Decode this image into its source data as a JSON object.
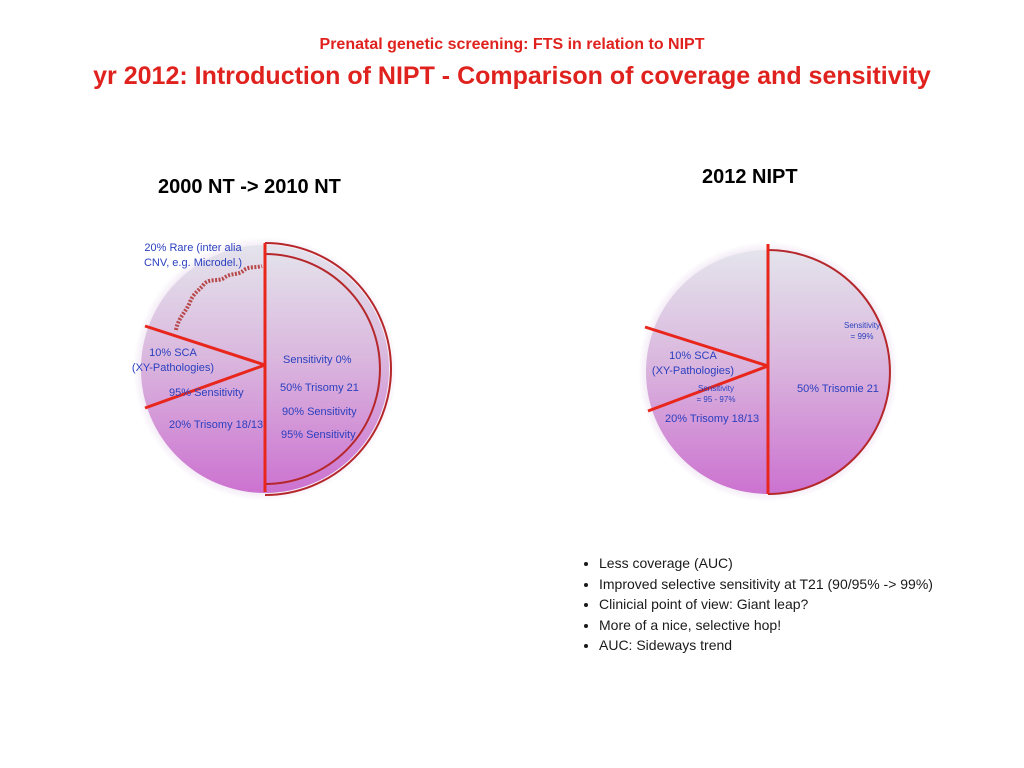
{
  "header": {
    "subtitle": "Prenatal genetic screening: FTS in relation to NIPT",
    "title": "yr 2012: Introduction of NIPT - Comparison of coverage and sensitivity"
  },
  "left_panel": {
    "title": "2000 NT -> 2010 NT",
    "labels": {
      "rare_line1": "20% Rare (inter alia",
      "rare_line2": "CNV, e.g. Microdel.)",
      "sca_line1": "10% SCA",
      "sca_line2": "(XY-Pathologies)",
      "sca_sensitivity": "95% Sensitivity",
      "trisomy1813": "20% Trisomy 18/13",
      "rare_sensitivity": "Sensitivity 0%",
      "trisomy21": "50% Trisomy 21",
      "sens_90": "90% Sensitivity",
      "sens_95": "95% Sensitivity"
    }
  },
  "right_panel": {
    "title": "2012 NIPT",
    "labels": {
      "t21_sens_line1": "Sensitivity",
      "t21_sens_line2": "= 99%",
      "sca_line1": "10% SCA",
      "sca_line2": "(XY-Pathologies)",
      "sca_sens_line1": "Sensitivity",
      "sca_sens_line2": "= 95 - 97%",
      "trisomy21": "50% Trisomie 21",
      "trisomy1813": "20% Trisomy 18/13"
    }
  },
  "bullets": [
    "Less coverage (AUC)",
    "Improved selective sensitivity at T21 (90/95% -> 99%)",
    "Clinicial point of view: Giant leap?",
    "More of a nice, selective hop!",
    "AUC: Sideways trend"
  ],
  "colors": {
    "title_red": "#e0221e",
    "label_blue": "#2a3fbf",
    "divider_red": "#e8261c",
    "arc_dark_red": "#b5272a",
    "fill_top": "#dcdce6",
    "fill_bottom": "#cf7fd4"
  }
}
